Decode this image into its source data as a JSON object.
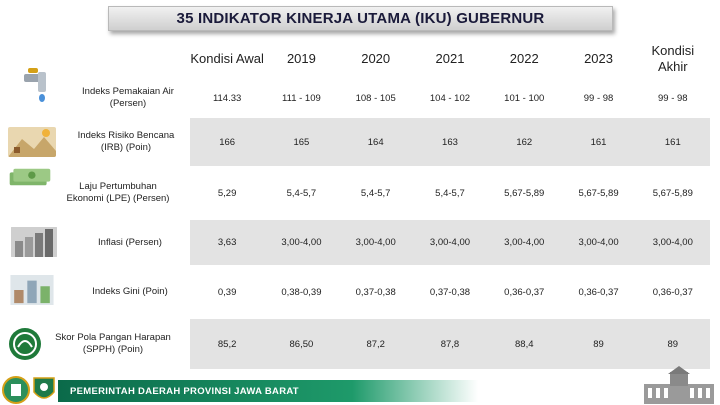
{
  "title": "35 INDIKATOR KINERJA UTAMA (IKU) GUBERNUR",
  "headers": [
    "Kondisi Awal",
    "2019",
    "2020",
    "2021",
    "2022",
    "2023",
    "Kondisi Akhir"
  ],
  "rows": [
    {
      "label": "Indeks Pemakaian Air (Persen)",
      "icon": "water-tap-icon",
      "values": [
        "114.33",
        "111 - 109",
        "108 - 105",
        "104 - 102",
        "101 - 100",
        "99 - 98",
        "99 - 98"
      ]
    },
    {
      "label": "Indeks Risiko Bencana (IRB) (Poin)",
      "icon": "disaster-scene-icon",
      "values": [
        "166",
        "165",
        "164",
        "163",
        "162",
        "161",
        "161"
      ]
    },
    {
      "label": "Laju Pertumbuhan Ekonomi (LPE) (Persen)",
      "icon": "money-growth-icon",
      "values": [
        "5,29",
        "5,4-5,7",
        "5,4-5,7",
        "5,4-5,7",
        "5,67-5,89",
        "5,67-5,89",
        "5,67-5,89"
      ]
    },
    {
      "label": "Inflasi  (Persen)",
      "icon": "coin-stack-icon",
      "values": [
        "3,63",
        "3,00-4,00",
        "3,00-4,00",
        "3,00-4,00",
        "3,00-4,00",
        "3,00-4,00",
        "3,00-4,00"
      ]
    },
    {
      "label": "Indeks Gini (Poin)",
      "icon": "income-gap-icon",
      "values": [
        "0,39",
        "0,38-0,39",
        "0,37-0,38",
        "0,37-0,38",
        "0,36-0,37",
        "0,36-0,37",
        "0,36-0,37"
      ]
    },
    {
      "label": "Skor Pola Pangan Harapan (SPPH) (Poin)",
      "icon": "food-pattern-logo-icon",
      "values": [
        "85,2",
        "86,50",
        "87,2",
        "87,8",
        "88,4",
        "89",
        "89"
      ]
    }
  ],
  "footer": {
    "text": "PEMERINTAH DAERAH PROVINSI JAWA BARAT"
  },
  "colors": {
    "row_shade": "#e3e3e3",
    "footer_green": "#0b6a4a",
    "title_text": "#1a1a3a"
  }
}
